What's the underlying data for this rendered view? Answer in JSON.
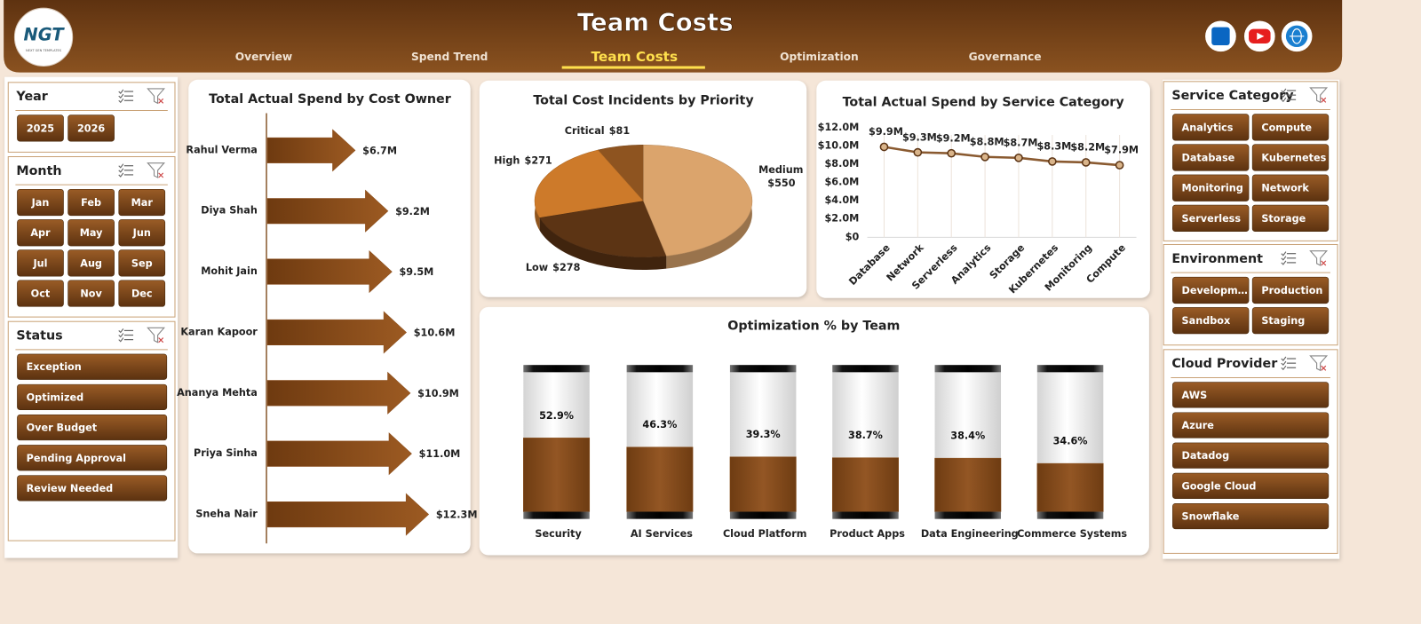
{
  "header": {
    "logo": "NGT",
    "logo_tagline": "NEXT GEN TEMPLATES",
    "title": "Team Costs"
  },
  "nav": {
    "items": [
      "Overview",
      "Spend Trend",
      "Team Costs",
      "Optimization",
      "Governance"
    ],
    "active": 2
  },
  "slicers_left": [
    {
      "title": "Year",
      "items": [
        "2025",
        "2026"
      ]
    },
    {
      "title": "Month",
      "items": [
        "Jan",
        "Feb",
        "Mar",
        "Apr",
        "May",
        "Jun",
        "Jul",
        "Aug",
        "Sep",
        "Oct",
        "Nov",
        "Dec"
      ]
    },
    {
      "title": "Status",
      "items": [
        "Exception",
        "Optimized",
        "Over Budget",
        "Pending Approval",
        "Review Needed"
      ]
    }
  ],
  "slicers_right": [
    {
      "title": "Service Category",
      "items": [
        "Analytics",
        "Compute",
        "Database",
        "Kubernetes",
        "Monitoring",
        "Network",
        "Serverless",
        "Storage"
      ]
    },
    {
      "title": "Environment",
      "items": [
        "Developm…",
        "Production",
        "Sandbox",
        "Staging"
      ]
    },
    {
      "title": "Cloud Provider",
      "items": [
        "AWS",
        "Azure",
        "Datadog",
        "Google Cloud",
        "Snowflake"
      ]
    }
  ],
  "chart_data": [
    {
      "type": "bar",
      "title": "Total Actual Spend by Cost Owner",
      "categories": [
        "Rahul Verma",
        "Diya Shah",
        "Mohit Jain",
        "Karan Kapoor",
        "Ananya Mehta",
        "Priya Sinha",
        "Sneha Nair"
      ],
      "values": [
        6.7,
        9.2,
        9.5,
        10.6,
        10.9,
        11.0,
        12.3
      ],
      "value_labels": [
        "$6.7M",
        "$9.2M",
        "$9.5M",
        "$10.6M",
        "$10.9M",
        "$11.0M",
        "$12.3M"
      ],
      "color": "#8a4b18"
    },
    {
      "type": "pie",
      "title": "Total Cost Incidents by Priority",
      "categories": [
        "Critical",
        "High",
        "Low",
        "Medium"
      ],
      "values": [
        81,
        271,
        278,
        550
      ],
      "value_labels": [
        "$81",
        "$271",
        "$278",
        "$550"
      ],
      "colors": [
        "#8e5420",
        "#cd7a2a",
        "#5c3414",
        "#dba46c"
      ]
    },
    {
      "type": "line",
      "title": "Total Actual Spend by Service Category",
      "categories": [
        "Database",
        "Network",
        "Serverless",
        "Analytics",
        "Storage",
        "Kubernetes",
        "Monitoring",
        "Compute"
      ],
      "values": [
        9900000,
        9300000,
        9200000,
        8800000,
        8700000,
        8300000,
        8200000,
        7900000
      ],
      "value_labels": [
        "$9.9M",
        "$9.3M",
        "$9.2M",
        "$8.8M",
        "$8.7M",
        "$8.3M",
        "$8.2M",
        "$7.9M"
      ],
      "ylim": [
        0,
        12000000
      ],
      "yticks": [
        {
          "value": 0,
          "label": "$0"
        },
        {
          "value": 2000000,
          "label": "$2.0M"
        },
        {
          "value": 4000000,
          "label": "$4.0M"
        },
        {
          "value": 6000000,
          "label": "$6.0M"
        },
        {
          "value": 8000000,
          "label": "$8.0M"
        },
        {
          "value": 10000000,
          "label": "$10.0M"
        },
        {
          "value": 12000000,
          "label": "$12.0M"
        }
      ],
      "color": "#8a5a30",
      "grid": true
    },
    {
      "type": "cylinder",
      "title": "Optimization % by Team",
      "categories": [
        "Security",
        "AI Services",
        "Cloud Platform",
        "Product Apps",
        "Data Engineering",
        "Commerce Systems"
      ],
      "values": [
        52.9,
        46.3,
        39.3,
        38.7,
        38.4,
        34.6
      ],
      "value_labels": [
        "52.9%",
        "46.3%",
        "39.3%",
        "38.7%",
        "38.4%",
        "34.6%"
      ],
      "ylim": [
        0,
        100
      ],
      "color": "#8a4f1c"
    }
  ]
}
